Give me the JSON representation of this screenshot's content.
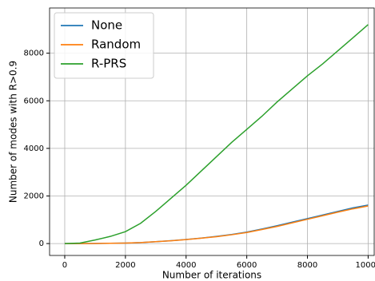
{
  "chart_data": {
    "type": "line",
    "x_label": "Number of iterations",
    "y_label": "Number of modes with R>0.9",
    "x": [
      0,
      500,
      1000,
      1500,
      2000,
      2500,
      3000,
      3500,
      4000,
      4500,
      5000,
      5500,
      6000,
      6500,
      7000,
      7500,
      8000,
      8500,
      9000,
      9500,
      10000
    ],
    "series": [
      {
        "name": "None",
        "color": "#1f77b4",
        "values": [
          0,
          1,
          5,
          10,
          20,
          40,
          80,
          120,
          170,
          230,
          300,
          380,
          480,
          610,
          750,
          900,
          1050,
          1200,
          1350,
          1500,
          1620
        ]
      },
      {
        "name": "Random",
        "color": "#ff7f0e",
        "values": [
          0,
          1,
          5,
          10,
          20,
          40,
          78,
          118,
          165,
          225,
          290,
          370,
          465,
          590,
          720,
          870,
          1020,
          1170,
          1320,
          1460,
          1580
        ]
      },
      {
        "name": "R-PRS",
        "color": "#2ca02c",
        "values": [
          0,
          20,
          150,
          300,
          500,
          850,
          1350,
          1900,
          2450,
          3050,
          3650,
          4250,
          4800,
          5350,
          5950,
          6500,
          7050,
          7550,
          8100,
          8650,
          9200
        ]
      }
    ],
    "xlim": [
      -500,
      10200
    ],
    "ylim": [
      -500,
      9900
    ],
    "xticks": [
      0,
      2000,
      4000,
      6000,
      8000,
      10000
    ],
    "yticks": [
      0,
      2000,
      4000,
      6000,
      8000
    ],
    "grid": true,
    "legend": "upper-left"
  }
}
